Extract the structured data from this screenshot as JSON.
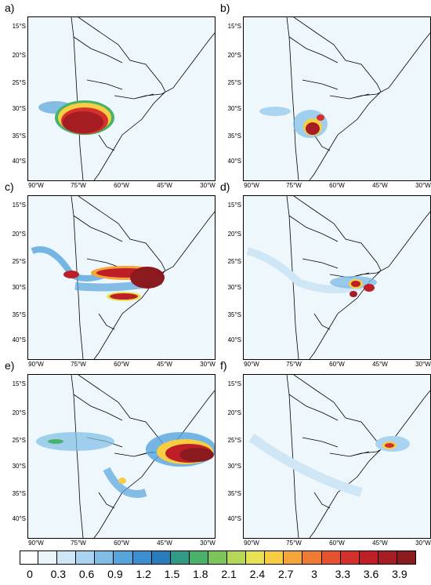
{
  "panels": [
    {
      "letter": "a)"
    },
    {
      "letter": "b)"
    },
    {
      "letter": "c)"
    },
    {
      "letter": "d)"
    },
    {
      "letter": "e)"
    },
    {
      "letter": "f)"
    }
  ],
  "axes": {
    "lat_labels": [
      "15°S",
      "20°S",
      "25°S",
      "30°S",
      "35°S",
      "40°S"
    ],
    "lon_labels": [
      "90°W",
      "75°W",
      "60°W",
      "45°W",
      "30°W"
    ]
  },
  "colorbar": {
    "labels": [
      "0",
      "0.3",
      "0.6",
      "0.9",
      "1.2",
      "1.5",
      "1.8",
      "2.1",
      "2.4",
      "2.7",
      "3",
      "3.3",
      "3.6",
      "3.9"
    ],
    "colors": [
      "#ffffff",
      "#eaf4fb",
      "#cfe6f6",
      "#a9d3f0",
      "#7fbde7",
      "#56a4dc",
      "#3b8fd0",
      "#2a7dbd",
      "#2f9a86",
      "#48b26a",
      "#7cc55b",
      "#b6d655",
      "#e6e152",
      "#f7cd42",
      "#f5a53a",
      "#ef7b33",
      "#e65230",
      "#d4302c",
      "#be1e26",
      "#a51c22",
      "#8b1a1f"
    ]
  },
  "style": {
    "land_bg": "#eef7fc",
    "coast": "#000000"
  }
}
